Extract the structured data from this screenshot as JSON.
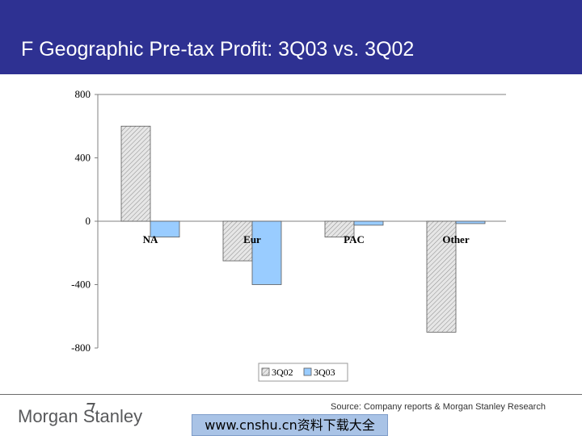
{
  "slide": {
    "title": "F Geographic Pre-tax Profit: 3Q03 vs. 3Q02",
    "source": "Source: Company reports & Morgan Stanley Research",
    "logo_text": "Morgan Stanley",
    "watermark": "www.cnshu.cn资料下载大全"
  },
  "colors": {
    "title_bar": "#2e3192",
    "series_3q02": "#d9d9d9",
    "series_3q03": "#99ccff",
    "axis": "#808080"
  },
  "chart_data": {
    "type": "bar",
    "categories": [
      "NA",
      "Eur",
      "PAC",
      "Other"
    ],
    "series": [
      {
        "name": "3Q02",
        "values": [
          600,
          -250,
          -100,
          -700
        ],
        "pattern": "diagonal-hatch"
      },
      {
        "name": "3Q03",
        "values": [
          -100,
          -400,
          -25,
          -15
        ],
        "pattern": "solid"
      }
    ],
    "ylim": [
      -800,
      800
    ],
    "yticks": [
      800,
      400,
      0,
      -400,
      -800
    ],
    "title": "",
    "xlabel": "",
    "ylabel": "",
    "grid": false,
    "legend_position": "bottom"
  }
}
